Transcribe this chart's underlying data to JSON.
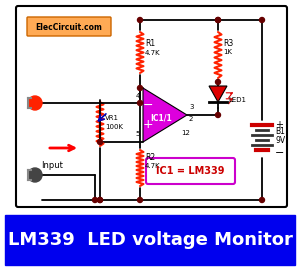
{
  "bg_color": "#ffffff",
  "title_bg": "#0000ee",
  "title_text": "LM339  LED voltage Monitor",
  "title_color": "#ffffff",
  "title_fontsize": 13,
  "elec_label": "ElecCircuit.com",
  "elec_bg": "#ffaa55",
  "ic1_label": "IC1 = LM339",
  "ic1_label_color": "#cc0000",
  "ic1_label_border": "#cc00cc",
  "opamp_color": "#dd00dd",
  "wire_color": "#000000",
  "resistor_color": "#ff2200",
  "led_fill": "#dd0000",
  "node_color": "#660000",
  "input_arrow_color": "#ff0000",
  "vr1_arrow_color": "#0000bb",
  "battery_red": "#cc0000",
  "lw": 1.3
}
